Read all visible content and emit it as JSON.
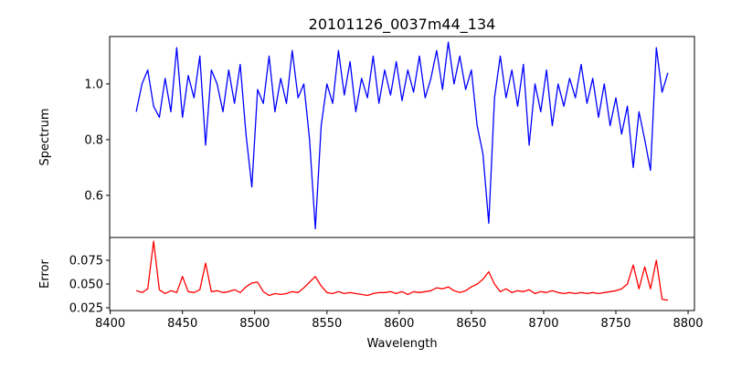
{
  "chart_data": [
    {
      "type": "line",
      "title": "20101126_0037m44_134",
      "xlabel": "",
      "ylabel": "Spectrum",
      "xlim": [
        8399.6,
        8804.4
      ],
      "ylim": [
        0.449,
        1.17
      ],
      "yticks": [
        "0.6",
        "0.8",
        "1.0"
      ],
      "ytick_values": [
        0.6,
        0.8,
        1.0
      ],
      "color": "#0000ff",
      "x_start": 8418,
      "x_step": 4,
      "values": [
        0.9,
        1.0,
        1.05,
        0.92,
        0.88,
        1.02,
        0.9,
        1.13,
        0.88,
        1.03,
        0.95,
        1.1,
        0.78,
        1.05,
        1.0,
        0.9,
        1.05,
        0.93,
        1.07,
        0.82,
        0.63,
        0.98,
        0.93,
        1.1,
        0.9,
        1.02,
        0.93,
        1.12,
        0.95,
        1.0,
        0.8,
        0.48,
        0.85,
        1.0,
        0.93,
        1.12,
        0.96,
        1.08,
        0.9,
        1.02,
        0.95,
        1.1,
        0.93,
        1.05,
        0.96,
        1.08,
        0.94,
        1.05,
        0.97,
        1.1,
        0.95,
        1.02,
        1.12,
        0.98,
        1.15,
        1.0,
        1.1,
        0.98,
        1.05,
        0.85,
        0.75,
        0.5,
        0.95,
        1.1,
        0.95,
        1.05,
        0.92,
        1.07,
        0.78,
        1.0,
        0.9,
        1.05,
        0.85,
        1.0,
        0.92,
        1.02,
        0.95,
        1.07,
        0.93,
        1.02,
        0.88,
        1.0,
        0.85,
        0.95,
        0.82,
        0.92,
        0.7,
        0.9,
        0.8,
        0.69,
        1.13,
        0.97,
        1.04
      ]
    },
    {
      "type": "line",
      "xlabel": "Wavelength",
      "ylabel": "Error",
      "xlim": [
        8399.6,
        8804.4
      ],
      "ylim": [
        0.0221,
        0.099
      ],
      "xticks": [
        "8400",
        "8450",
        "8500",
        "8550",
        "8600",
        "8650",
        "8700",
        "8750",
        "8800"
      ],
      "xtick_values": [
        8400,
        8450,
        8500,
        8550,
        8600,
        8650,
        8700,
        8750,
        8800
      ],
      "yticks": [
        "0.025",
        "0.050",
        "0.075"
      ],
      "ytick_values": [
        0.025,
        0.05,
        0.075
      ],
      "color": "#ff0000",
      "x_start": 8418,
      "x_step": 4,
      "values": [
        0.043,
        0.041,
        0.045,
        0.095,
        0.044,
        0.04,
        0.043,
        0.041,
        0.058,
        0.042,
        0.041,
        0.044,
        0.072,
        0.042,
        0.043,
        0.041,
        0.042,
        0.044,
        0.041,
        0.047,
        0.051,
        0.052,
        0.042,
        0.038,
        0.04,
        0.039,
        0.04,
        0.042,
        0.041,
        0.046,
        0.052,
        0.058,
        0.048,
        0.041,
        0.04,
        0.042,
        0.04,
        0.041,
        0.04,
        0.039,
        0.038,
        0.04,
        0.041,
        0.041,
        0.042,
        0.04,
        0.042,
        0.039,
        0.042,
        0.041,
        0.042,
        0.043,
        0.046,
        0.045,
        0.047,
        0.043,
        0.041,
        0.043,
        0.047,
        0.05,
        0.055,
        0.063,
        0.05,
        0.042,
        0.045,
        0.041,
        0.043,
        0.042,
        0.044,
        0.04,
        0.042,
        0.041,
        0.043,
        0.041,
        0.04,
        0.041,
        0.04,
        0.041,
        0.04,
        0.041,
        0.04,
        0.041,
        0.042,
        0.043,
        0.045,
        0.05,
        0.07,
        0.045,
        0.068,
        0.045,
        0.075,
        0.034,
        0.033
      ]
    }
  ]
}
